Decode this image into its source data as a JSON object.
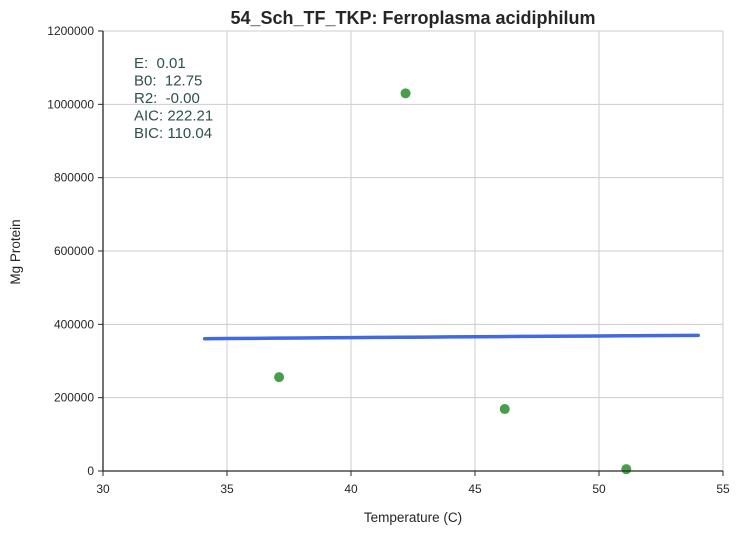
{
  "chart_data": {
    "type": "scatter",
    "title": "54_Sch_TF_TKP: Ferroplasma acidiphilum",
    "xlabel": "Temperature (C)",
    "ylabel": "Mg Protein",
    "xlim": [
      30,
      55
    ],
    "ylim": [
      0,
      1200000
    ],
    "xticks": [
      30,
      35,
      40,
      45,
      50,
      55
    ],
    "yticks": [
      0,
      200000,
      400000,
      600000,
      800000,
      1000000,
      1200000
    ],
    "xtick_labels": [
      "30",
      "35",
      "40",
      "45",
      "50",
      "55"
    ],
    "ytick_labels": [
      "0",
      "200000",
      "400000",
      "600000",
      "800000",
      "1000000",
      "1200000"
    ],
    "grid": true,
    "points": [
      {
        "x": 37.1,
        "y": 256000
      },
      {
        "x": 42.2,
        "y": 1030000
      },
      {
        "x": 46.2,
        "y": 169000
      },
      {
        "x": 51.1,
        "y": 5000
      }
    ],
    "fit_line": {
      "x": [
        34.1,
        34.5,
        35,
        36,
        37,
        38,
        39,
        40,
        41,
        42,
        43,
        44,
        45,
        46,
        47,
        48,
        49,
        50,
        51,
        52,
        53,
        54
      ],
      "y": [
        360800,
        361000,
        361300,
        361800,
        362300,
        362800,
        363300,
        363800,
        364300,
        364800,
        365200,
        365700,
        366100,
        366600,
        367000,
        367500,
        367900,
        368300,
        368800,
        369200,
        369600,
        370000
      ]
    },
    "annotation_lines": [
      "E:  0.01",
      "B0:  12.75",
      "R2:  -0.00",
      "AIC: 222.21",
      "BIC: 110.04"
    ],
    "colors": {
      "points": "#4a9e4a",
      "fit_line": "#4169e1",
      "annotation": "#2f4f4f",
      "grid": "#cccccc",
      "axis": "#262626"
    }
  }
}
